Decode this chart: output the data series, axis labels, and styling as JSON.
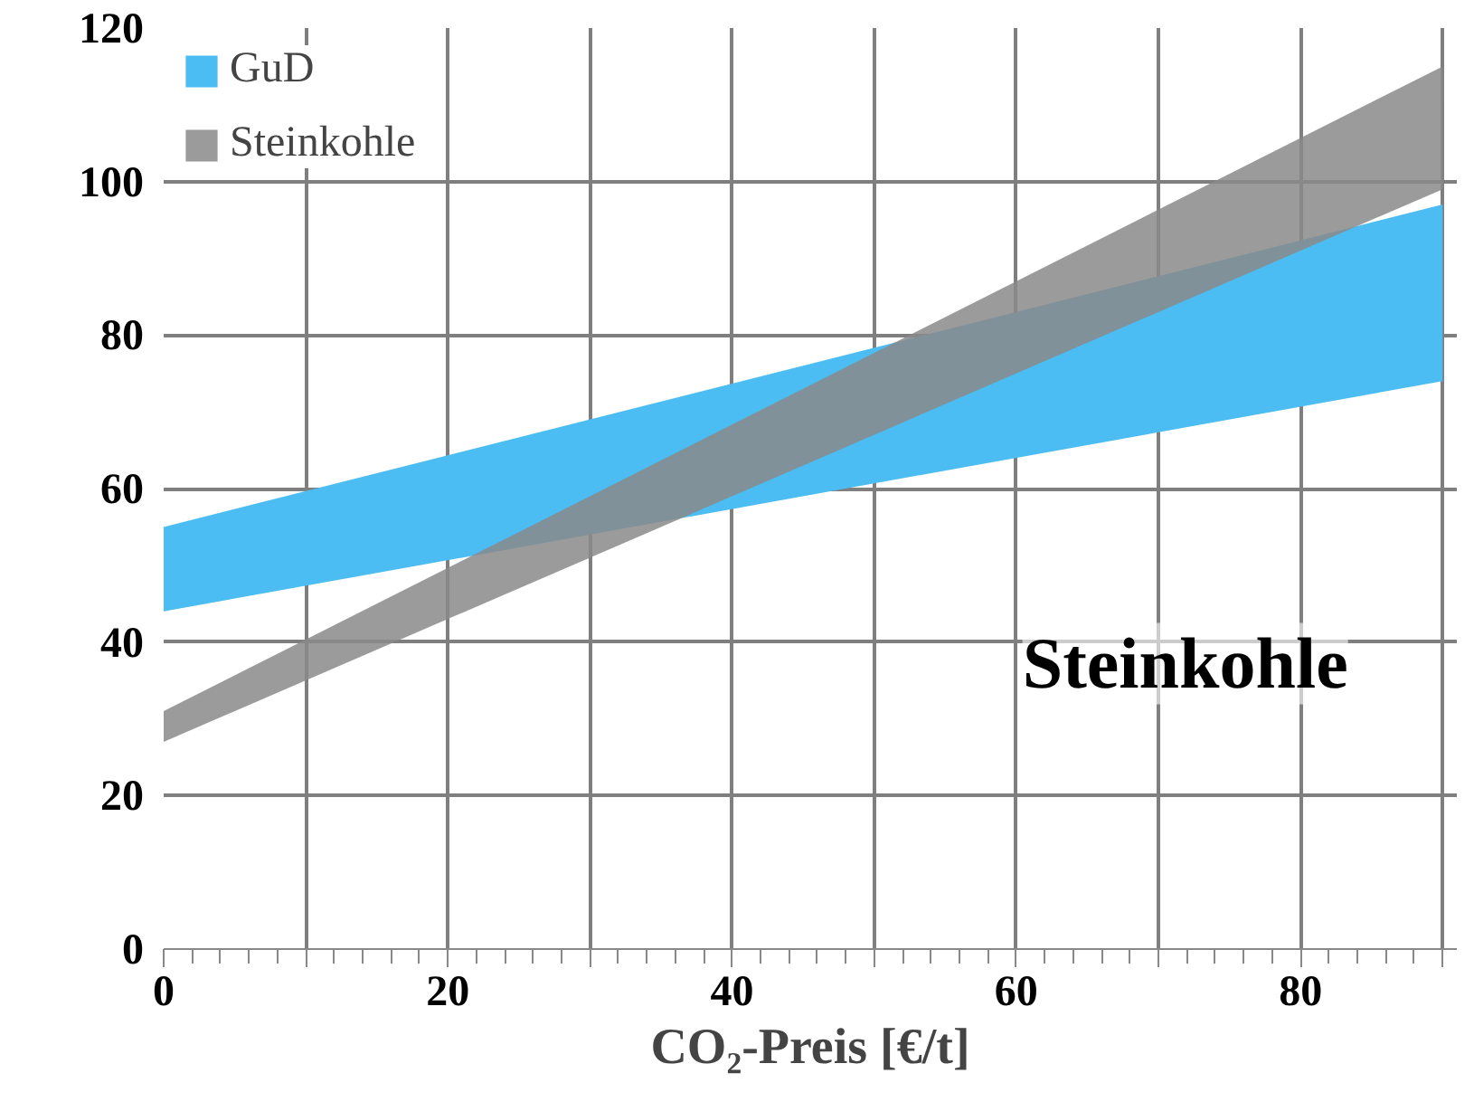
{
  "chart_data": {
    "type": "line",
    "xlabel": "CO₂-Preis [€/t]",
    "x": [
      0,
      90
    ],
    "series": [
      {
        "name": "GuD",
        "color": "#4cbdf2",
        "values": [
          null,
          null
        ],
        "lower": [
          44,
          74
        ],
        "upper": [
          55,
          97
        ]
      },
      {
        "name": "Steinkohle",
        "color": "#8a8a8a",
        "values": [
          null,
          null
        ],
        "lower": [
          27,
          99
        ],
        "upper": [
          31,
          115
        ]
      }
    ],
    "xlim": [
      0,
      91
    ],
    "ylim": [
      0,
      120
    ],
    "xticks": [
      0,
      {
        "value": 10,
        "label": null
      },
      20,
      {
        "value": 30,
        "label": null
      },
      40,
      {
        "value": 50,
        "label": null
      },
      60,
      {
        "value": 70,
        "label": null
      },
      80,
      {
        "value": 90,
        "label": null
      }
    ],
    "yticks": [
      0,
      20,
      40,
      60,
      80,
      100,
      120
    ],
    "grid": true,
    "legend": "top left",
    "annotations": [
      "Steinkohle"
    ]
  }
}
